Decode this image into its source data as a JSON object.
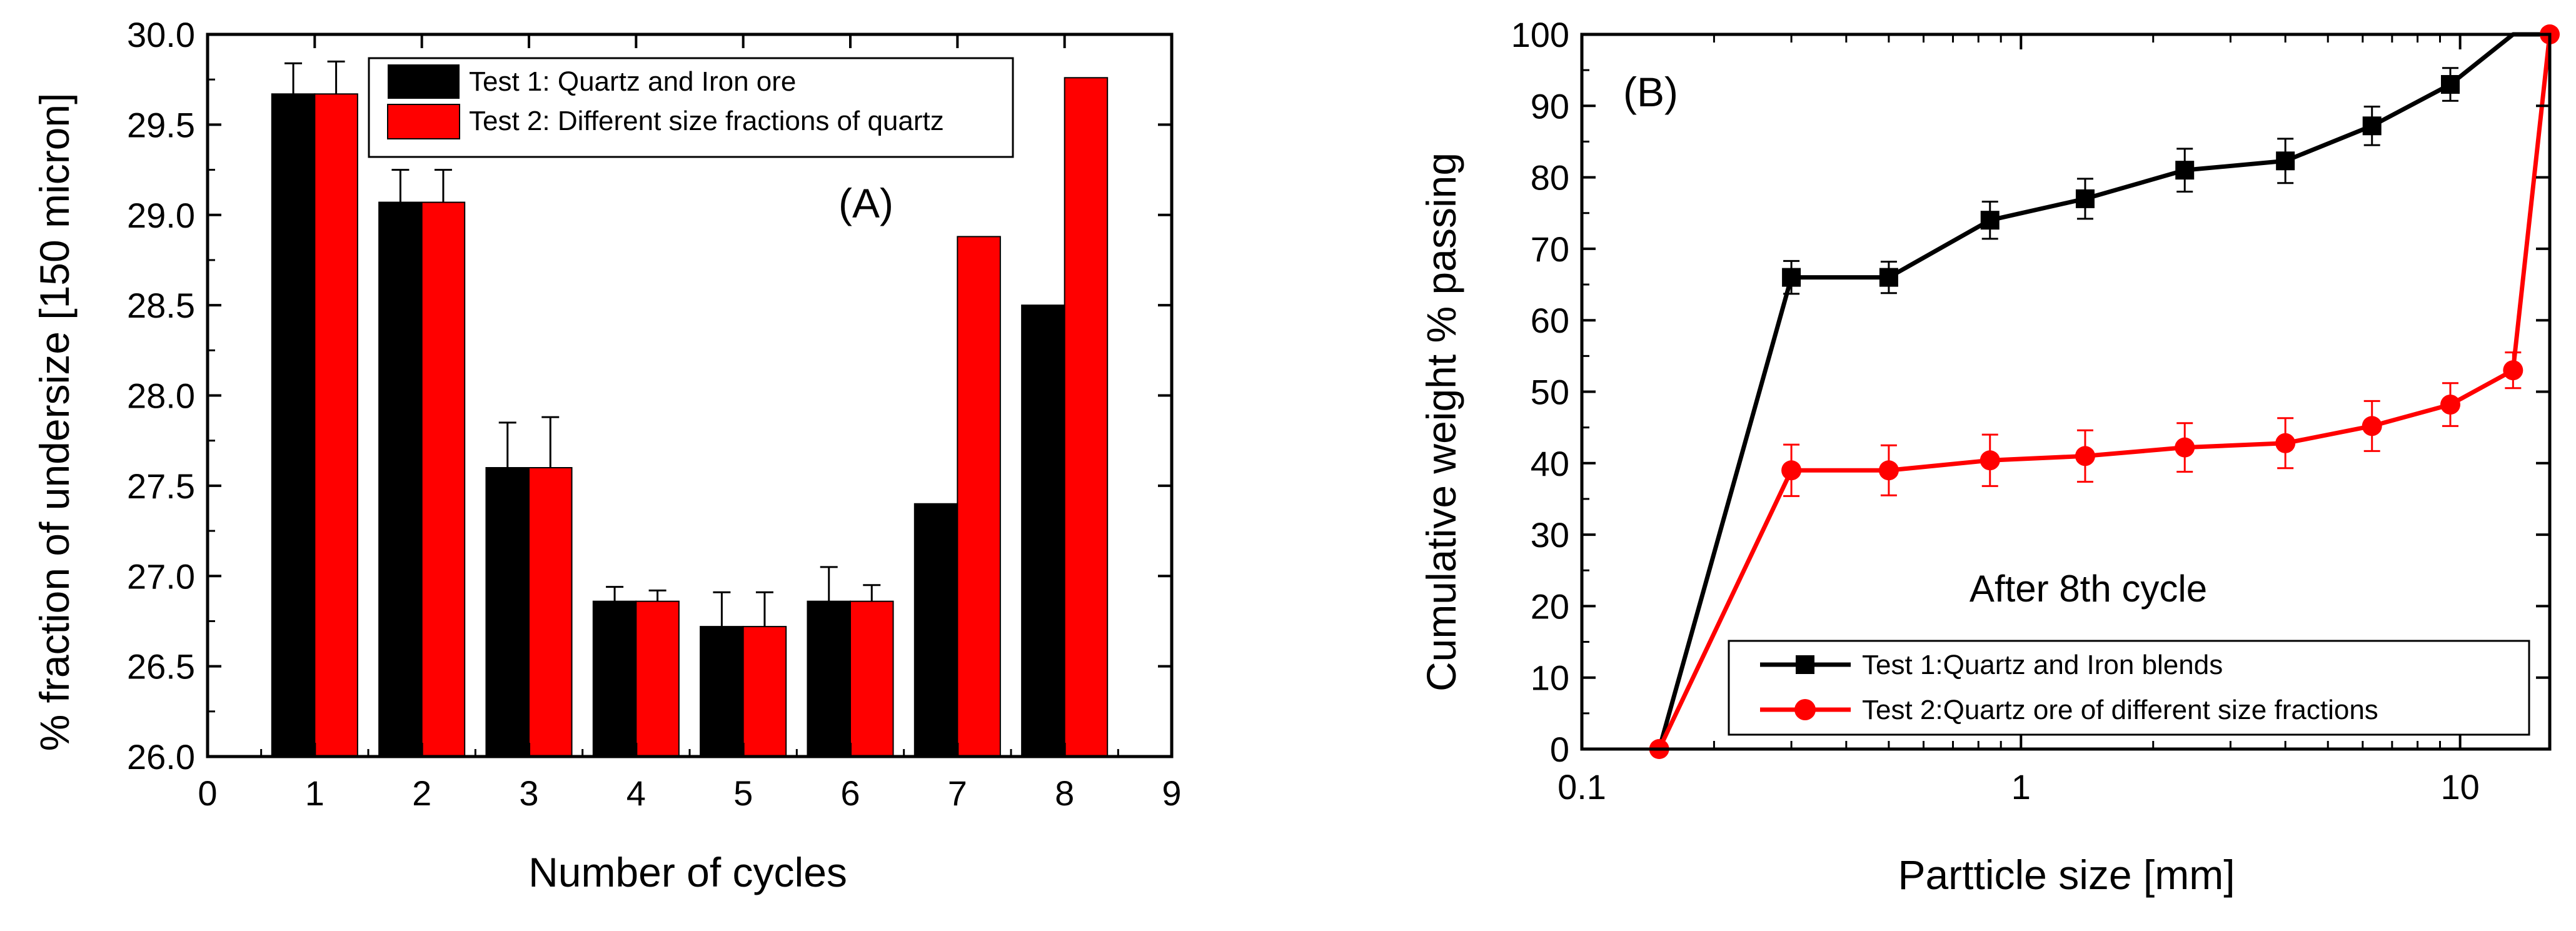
{
  "chart_data": [
    {
      "type": "bar",
      "panel_label": "(A)",
      "xlabel": "Number of cycles",
      "ylabel": "% fraction of undersize [150 micron]",
      "xlim": [
        0,
        9
      ],
      "ylim": [
        26.0,
        30.0
      ],
      "x_ticks": [
        "0",
        "1",
        "2",
        "3",
        "4",
        "5",
        "6",
        "7",
        "8",
        "9"
      ],
      "y_ticks": [
        "26.0",
        "26.5",
        "27.0",
        "27.5",
        "28.0",
        "28.5",
        "29.0",
        "29.5",
        "30.0"
      ],
      "categories": [
        1,
        2,
        3,
        4,
        5,
        6,
        7,
        8
      ],
      "legend_position": "top-right",
      "series": [
        {
          "name": "Test 1: Quartz and Iron ore",
          "color": "#000000",
          "values": [
            29.67,
            29.07,
            27.6,
            26.86,
            26.72,
            26.86,
            27.4,
            28.5
          ],
          "errors": [
            0.17,
            0.18,
            0.25,
            0.08,
            0.19,
            0.19,
            null,
            null
          ]
        },
        {
          "name": "Test 2: Different size fractions of quartz",
          "color": "#ff0000",
          "values": [
            29.67,
            29.07,
            27.6,
            26.86,
            26.72,
            26.86,
            28.88,
            29.76
          ],
          "errors": [
            0.18,
            0.18,
            0.28,
            0.06,
            0.19,
            0.09,
            null,
            null
          ]
        }
      ]
    },
    {
      "type": "line",
      "panel_label": "(B)",
      "annotation": "After 8th cycle",
      "xlabel": "Partticle size [mm]",
      "ylabel": "Cumulative weight % passing",
      "xscale": "log",
      "xlim": [
        0.1,
        16
      ],
      "ylim": [
        0,
        100
      ],
      "x_ticks": [
        "0.1",
        "1",
        "10"
      ],
      "y_ticks": [
        "0",
        "10",
        "20",
        "30",
        "40",
        "50",
        "60",
        "70",
        "80",
        "90",
        "100"
      ],
      "legend_position": "bottom-right",
      "series": [
        {
          "name": "Test 1:Quartz and Iron blends",
          "color": "#000000",
          "marker": "square",
          "x": [
            0.15,
            0.3,
            0.5,
            0.85,
            1.4,
            2.36,
            4.0,
            6.3,
            9.5,
            13.2,
            16
          ],
          "y": [
            0,
            66,
            66,
            74,
            77,
            81,
            82.3,
            87.2,
            93,
            100,
            100
          ],
          "errors": [
            null,
            2.3,
            2.2,
            2.6,
            2.8,
            3.0,
            3.1,
            2.7,
            2.3,
            null,
            null
          ],
          "markers": [
            false,
            true,
            true,
            true,
            true,
            true,
            true,
            true,
            true,
            false,
            false
          ]
        },
        {
          "name": "Test 2:Quartz ore of different size fractions",
          "color": "#ff0000",
          "marker": "circle",
          "x": [
            0.15,
            0.3,
            0.5,
            0.85,
            1.4,
            2.36,
            4.0,
            6.3,
            9.5,
            13.2,
            16
          ],
          "y": [
            0,
            39,
            39,
            40.4,
            41,
            42.2,
            42.8,
            45.2,
            48.2,
            53,
            100
          ],
          "errors": [
            null,
            3.6,
            3.5,
            3.6,
            3.6,
            3.4,
            3.5,
            3.5,
            3.0,
            2.5,
            null
          ],
          "markers": [
            true,
            true,
            true,
            true,
            true,
            true,
            true,
            true,
            true,
            true,
            true
          ]
        }
      ]
    }
  ]
}
